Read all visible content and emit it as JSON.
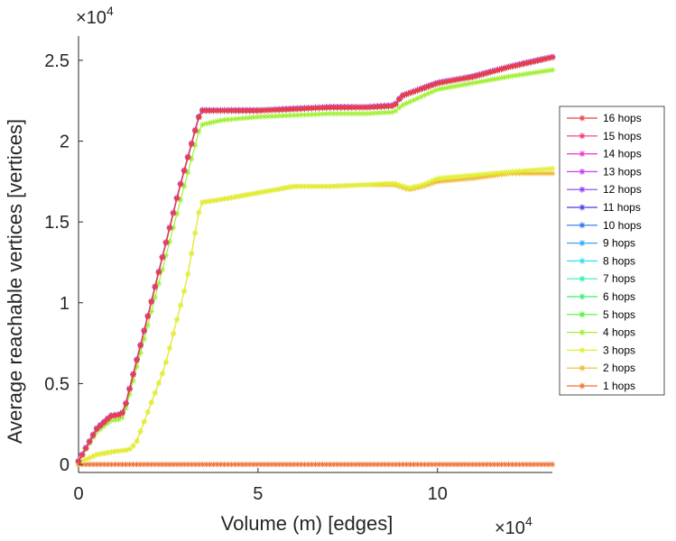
{
  "chart_data": {
    "type": "line",
    "xlabel": "Volume (m) [edges]",
    "ylabel": "Average reachable vertices [vertices]",
    "x_exponent_label": "×10",
    "x_exponent_power": "4",
    "y_exponent_label": "×10",
    "y_exponent_power": "4",
    "xlim": [
      0,
      13.2
    ],
    "ylim": [
      -0.05,
      2.65
    ],
    "xticks": [
      0,
      5,
      10
    ],
    "xtick_labels": [
      "0",
      "5",
      "10"
    ],
    "yticks": [
      0,
      0.5,
      1,
      1.5,
      2,
      2.5
    ],
    "ytick_labels": [
      "0",
      "0.5",
      "1",
      "1.5",
      "2",
      "2.5"
    ],
    "legend_position": "right",
    "series": [
      {
        "name": "16 hops",
        "color": "#e8403f",
        "group": "high"
      },
      {
        "name": "15 hops",
        "color": "#f0387a",
        "group": "high"
      },
      {
        "name": "14 hops",
        "color": "#e838c8",
        "group": "high"
      },
      {
        "name": "13 hops",
        "color": "#c040f0",
        "group": "high"
      },
      {
        "name": "12 hops",
        "color": "#8a3ff0",
        "group": "high"
      },
      {
        "name": "11 hops",
        "color": "#4838e8",
        "group": "high"
      },
      {
        "name": "10 hops",
        "color": "#2f74f0",
        "group": "high"
      },
      {
        "name": "9 hops",
        "color": "#30a8f0",
        "group": "high"
      },
      {
        "name": "8 hops",
        "color": "#30e0f0",
        "group": "high"
      },
      {
        "name": "7 hops",
        "color": "#30f0b8",
        "group": "high"
      },
      {
        "name": "6 hops",
        "color": "#30f070",
        "group": "high"
      },
      {
        "name": "5 hops",
        "color": "#50f030",
        "group": "high"
      },
      {
        "name": "4 hops",
        "color": "#a0f030",
        "group": "high"
      },
      {
        "name": "3 hops",
        "color": "#e0f030",
        "group": "mid"
      },
      {
        "name": "2 hops",
        "color": "#f0b830",
        "group": "two"
      },
      {
        "name": "1 hops",
        "color": "#f07030",
        "group": "one"
      }
    ],
    "curves": {
      "high": {
        "x": [
          0,
          0.5,
          0.9,
          1.2,
          1.3,
          2.0,
          2.8,
          3.4,
          4.0,
          5.0,
          6.0,
          7.0,
          8.0,
          8.8,
          9.0,
          9.5,
          10.0,
          11.0,
          12.0,
          13.2
        ],
        "y": [
          0.02,
          0.22,
          0.3,
          0.31,
          0.36,
          0.98,
          1.7,
          2.19,
          2.19,
          2.19,
          2.2,
          2.21,
          2.21,
          2.22,
          2.28,
          2.32,
          2.36,
          2.4,
          2.46,
          2.52
        ]
      },
      "four": {
        "x": [
          0,
          0.5,
          0.9,
          1.2,
          1.3,
          2.0,
          2.8,
          3.4,
          4.0,
          5.0,
          6.0,
          7.0,
          8.0,
          8.8,
          9.0,
          9.5,
          10.0,
          11.0,
          12.0,
          13.2
        ],
        "y": [
          0.02,
          0.2,
          0.27,
          0.28,
          0.33,
          0.92,
          1.6,
          2.1,
          2.13,
          2.15,
          2.16,
          2.17,
          2.17,
          2.18,
          2.22,
          2.27,
          2.32,
          2.36,
          2.4,
          2.44
        ]
      },
      "two": {
        "x": [
          0,
          0.5,
          1.0,
          1.4,
          1.6,
          2.4,
          3.0,
          3.4,
          4.0,
          5.0,
          6.0,
          7.0,
          8.0,
          8.8,
          9.2,
          9.6,
          10.0,
          11.0,
          12.0,
          13.2
        ],
        "y": [
          0.01,
          0.06,
          0.08,
          0.09,
          0.13,
          0.6,
          1.12,
          1.62,
          1.64,
          1.68,
          1.72,
          1.72,
          1.73,
          1.73,
          1.7,
          1.72,
          1.75,
          1.77,
          1.8,
          1.8
        ]
      },
      "mid": {
        "x": [
          0,
          0.5,
          1.0,
          1.4,
          1.6,
          2.4,
          3.0,
          3.4,
          4.0,
          5.0,
          6.0,
          7.0,
          8.0,
          8.8,
          9.2,
          9.6,
          10.0,
          11.0,
          12.0,
          13.2
        ],
        "y": [
          0.01,
          0.06,
          0.08,
          0.09,
          0.13,
          0.6,
          1.12,
          1.62,
          1.64,
          1.68,
          1.72,
          1.72,
          1.73,
          1.74,
          1.71,
          1.73,
          1.77,
          1.79,
          1.81,
          1.83
        ]
      },
      "one": {
        "x": [
          0,
          13.2
        ],
        "y": [
          0.0,
          0.0
        ]
      }
    }
  }
}
